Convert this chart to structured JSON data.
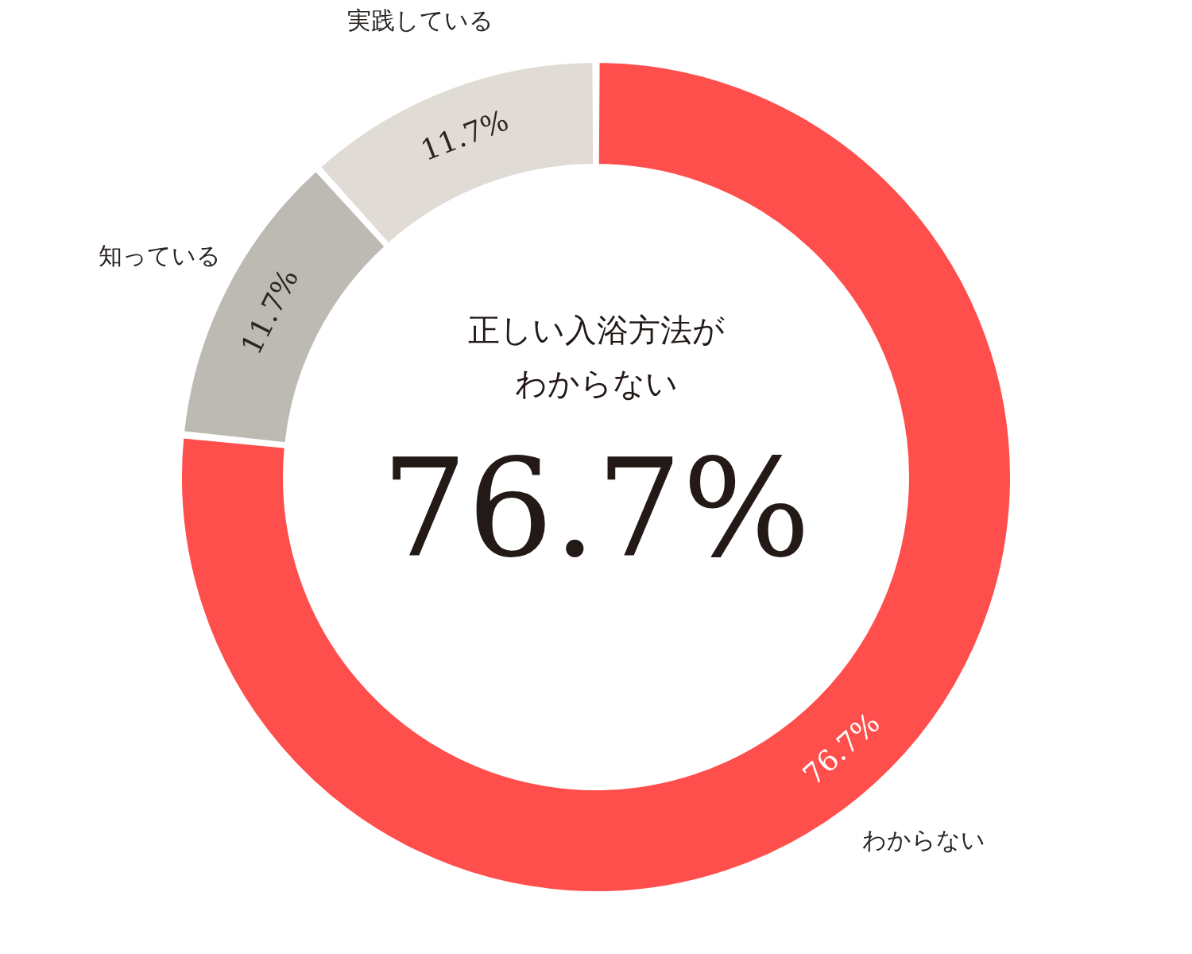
{
  "chart_data": {
    "type": "donut",
    "categories": [
      "わからない",
      "知っている",
      "実践している"
    ],
    "values": [
      76.7,
      11.7,
      11.7
    ],
    "colors": [
      "#ff4f4c",
      "#bdb9b3",
      "#e0dbd4"
    ],
    "value_labels": [
      "76.7%",
      "11.7%",
      "11.7%"
    ],
    "annotations": [
      "正しい入浴方法が",
      "わからない",
      "76.7%"
    ]
  }
}
